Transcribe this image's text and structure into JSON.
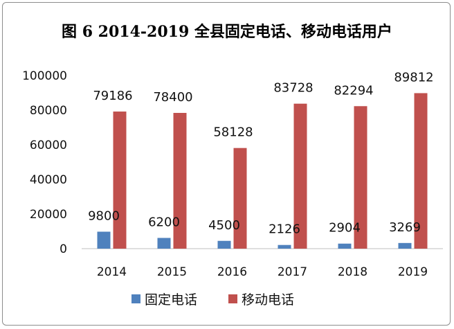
{
  "chart_data": {
    "type": "bar",
    "title": "图 6 2014-2019 全县固定电话、移动电话用户",
    "categories": [
      "2014",
      "2015",
      "2016",
      "2017",
      "2018",
      "2019"
    ],
    "series": [
      {
        "name": "固定电话",
        "values": [
          9800,
          6200,
          4500,
          2126,
          2904,
          3269
        ],
        "color": "#4f81bd"
      },
      {
        "name": "移动电话",
        "values": [
          79186,
          78400,
          58128,
          83728,
          82294,
          89812
        ],
        "color": "#c0504d"
      }
    ],
    "ylim": [
      0,
      100000
    ],
    "yticks": [
      "0",
      "20000",
      "40000",
      "60000",
      "80000",
      "100000"
    ],
    "grid": false,
    "legend": "bottom"
  }
}
